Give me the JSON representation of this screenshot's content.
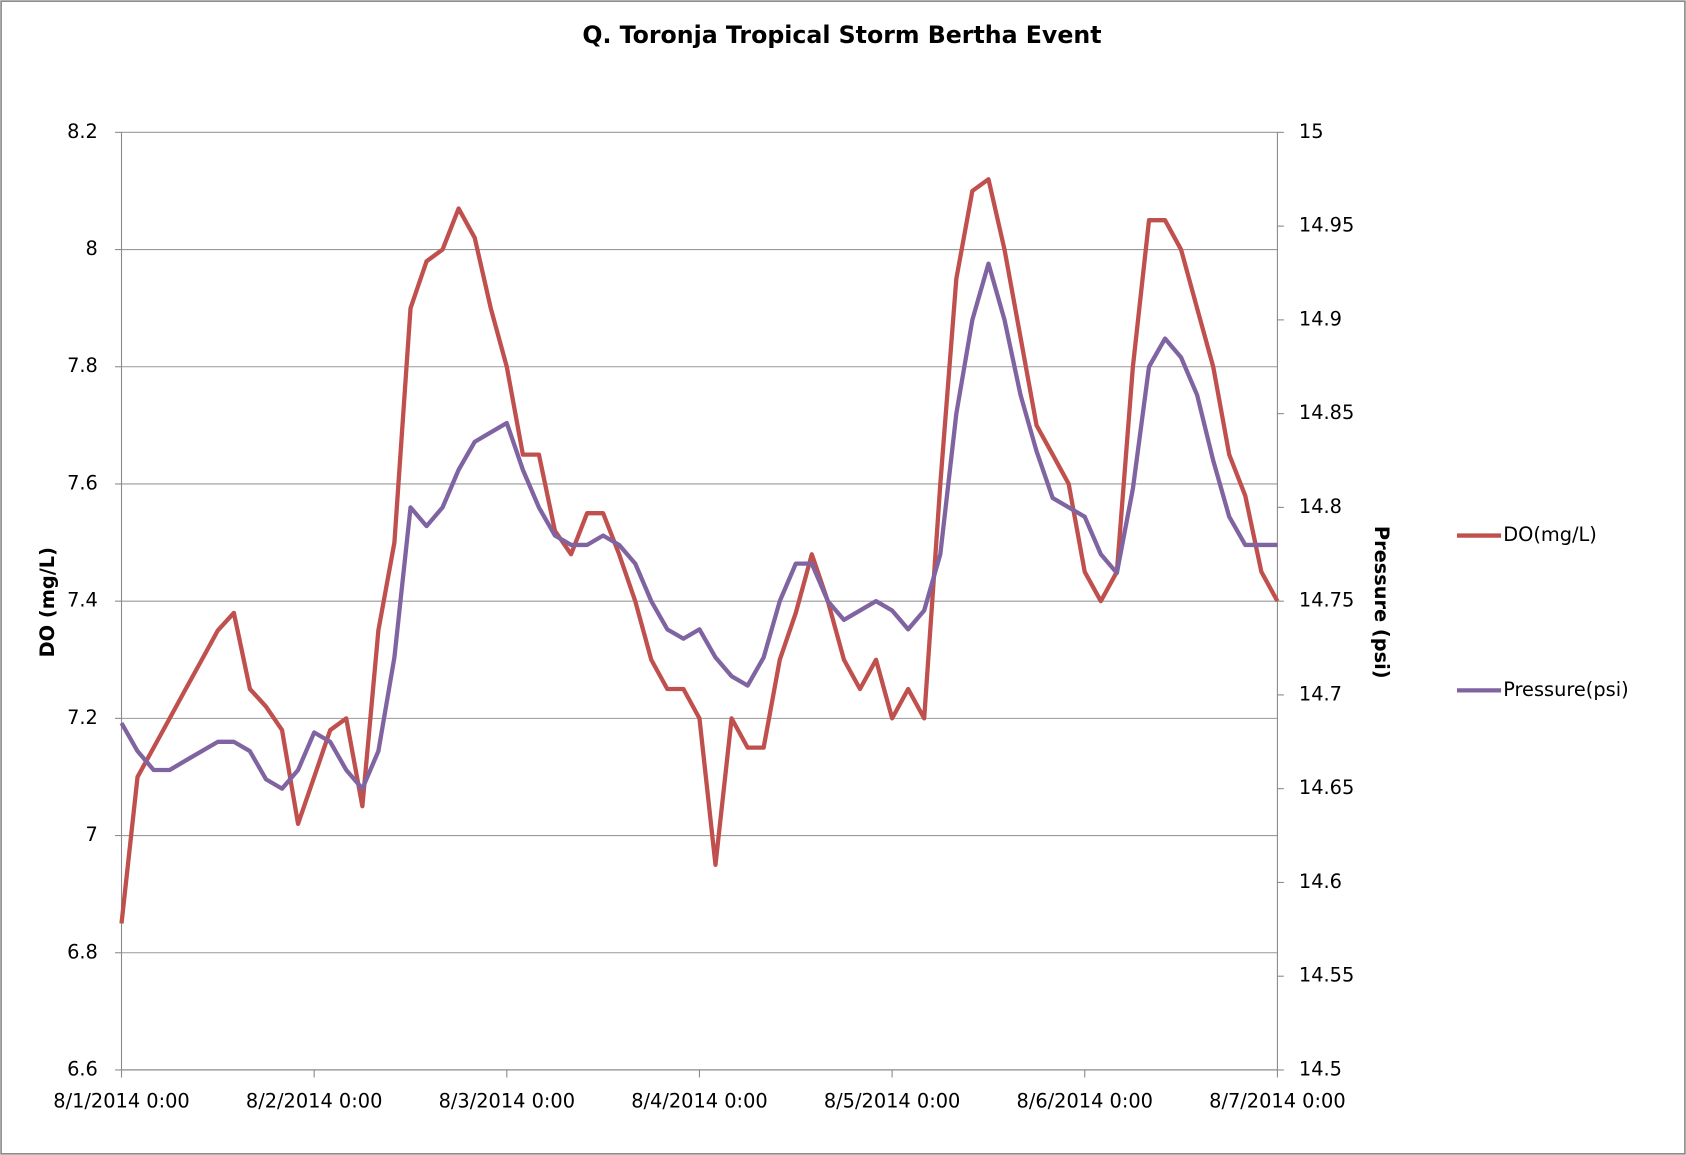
{
  "chart_data": {
    "type": "line",
    "title": "Q. Toronja Tropical Storm Bertha Event",
    "y_label": "DO (mg/L)",
    "y2_label": "Pressure (psi)",
    "x": [
      "2014-08-01T00:00",
      "2014-08-01T02:00",
      "2014-08-01T04:00",
      "2014-08-01T06:00",
      "2014-08-01T08:00",
      "2014-08-01T10:00",
      "2014-08-01T12:00",
      "2014-08-01T14:00",
      "2014-08-01T16:00",
      "2014-08-01T18:00",
      "2014-08-01T20:00",
      "2014-08-01T22:00",
      "2014-08-02T00:00",
      "2014-08-02T02:00",
      "2014-08-02T04:00",
      "2014-08-02T06:00",
      "2014-08-02T08:00",
      "2014-08-02T10:00",
      "2014-08-02T12:00",
      "2014-08-02T14:00",
      "2014-08-02T16:00",
      "2014-08-02T18:00",
      "2014-08-02T20:00",
      "2014-08-02T22:00",
      "2014-08-03T00:00",
      "2014-08-03T02:00",
      "2014-08-03T04:00",
      "2014-08-03T06:00",
      "2014-08-03T08:00",
      "2014-08-03T10:00",
      "2014-08-03T12:00",
      "2014-08-03T14:00",
      "2014-08-03T16:00",
      "2014-08-03T18:00",
      "2014-08-03T20:00",
      "2014-08-03T22:00",
      "2014-08-04T00:00",
      "2014-08-04T02:00",
      "2014-08-04T04:00",
      "2014-08-04T06:00",
      "2014-08-04T08:00",
      "2014-08-04T10:00",
      "2014-08-04T12:00",
      "2014-08-04T14:00",
      "2014-08-04T16:00",
      "2014-08-04T18:00",
      "2014-08-04T20:00",
      "2014-08-04T22:00",
      "2014-08-05T00:00",
      "2014-08-05T02:00",
      "2014-08-05T04:00",
      "2014-08-05T06:00",
      "2014-08-05T08:00",
      "2014-08-05T10:00",
      "2014-08-05T12:00",
      "2014-08-05T14:00",
      "2014-08-05T16:00",
      "2014-08-05T18:00",
      "2014-08-05T20:00",
      "2014-08-05T22:00",
      "2014-08-06T00:00",
      "2014-08-06T02:00",
      "2014-08-06T04:00",
      "2014-08-06T06:00",
      "2014-08-06T08:00",
      "2014-08-06T10:00",
      "2014-08-06T12:00",
      "2014-08-06T14:00",
      "2014-08-06T16:00",
      "2014-08-06T18:00",
      "2014-08-06T20:00",
      "2014-08-06T22:00",
      "2014-08-07T00:00"
    ],
    "series": [
      {
        "name": "DO(mg/L)",
        "color": "#c0504d",
        "axis": "y",
        "values": [
          6.85,
          7.1,
          7.15,
          7.2,
          7.25,
          7.3,
          7.35,
          7.38,
          7.25,
          7.22,
          7.18,
          7.02,
          7.1,
          7.18,
          7.2,
          7.05,
          7.35,
          7.5,
          7.9,
          7.98,
          8.0,
          8.07,
          8.02,
          7.9,
          7.8,
          7.65,
          7.65,
          7.52,
          7.48,
          7.55,
          7.55,
          7.48,
          7.4,
          7.3,
          7.25,
          7.25,
          7.2,
          6.95,
          7.2,
          7.15,
          7.15,
          7.3,
          7.38,
          7.48,
          7.4,
          7.3,
          7.25,
          7.3,
          7.2,
          7.25,
          7.2,
          7.6,
          7.95,
          8.1,
          8.12,
          8.0,
          7.85,
          7.7,
          7.65,
          7.6,
          7.45,
          7.4,
          7.45,
          7.8,
          8.05,
          8.05,
          8.0,
          7.9,
          7.8,
          7.65,
          7.58,
          7.45,
          7.4
        ]
      },
      {
        "name": "Pressure(psi)",
        "color": "#8064a2",
        "axis": "y2",
        "values": [
          14.685,
          14.67,
          14.66,
          14.66,
          14.665,
          14.67,
          14.675,
          14.675,
          14.67,
          14.655,
          14.65,
          14.66,
          14.68,
          14.675,
          14.66,
          14.65,
          14.67,
          14.72,
          14.8,
          14.79,
          14.8,
          14.82,
          14.835,
          14.84,
          14.845,
          14.82,
          14.8,
          14.785,
          14.78,
          14.78,
          14.785,
          14.78,
          14.77,
          14.75,
          14.735,
          14.73,
          14.735,
          14.72,
          14.71,
          14.705,
          14.72,
          14.75,
          14.77,
          14.77,
          14.75,
          14.74,
          14.745,
          14.75,
          14.745,
          14.735,
          14.745,
          14.775,
          14.85,
          14.9,
          14.93,
          14.9,
          14.86,
          14.83,
          14.805,
          14.8,
          14.795,
          14.775,
          14.765,
          14.81,
          14.875,
          14.89,
          14.88,
          14.86,
          14.825,
          14.795,
          14.78,
          14.78,
          14.78
        ]
      }
    ],
    "xlim": [
      "2014-08-01T00:00",
      "2014-08-07T00:00"
    ],
    "xticks": [
      {
        "value": "2014-08-01T00:00",
        "label": "8/1/2014 0:00"
      },
      {
        "value": "2014-08-02T00:00",
        "label": "8/2/2014 0:00"
      },
      {
        "value": "2014-08-03T00:00",
        "label": "8/3/2014 0:00"
      },
      {
        "value": "2014-08-04T00:00",
        "label": "8/4/2014 0:00"
      },
      {
        "value": "2014-08-05T00:00",
        "label": "8/5/2014 0:00"
      },
      {
        "value": "2014-08-06T00:00",
        "label": "8/6/2014 0:00"
      },
      {
        "value": "2014-08-07T00:00",
        "label": "8/7/2014 0:00"
      }
    ],
    "ylim": [
      6.6,
      8.2
    ],
    "yticks": [
      6.6,
      6.8,
      7,
      7.2,
      7.4,
      7.6,
      7.8,
      8,
      8.2
    ],
    "y2lim": [
      14.5,
      15
    ],
    "y2ticks": [
      14.5,
      14.55,
      14.6,
      14.65,
      14.7,
      14.75,
      14.8,
      14.85,
      14.9,
      14.95,
      15
    ],
    "grid": true,
    "legend": "right"
  }
}
